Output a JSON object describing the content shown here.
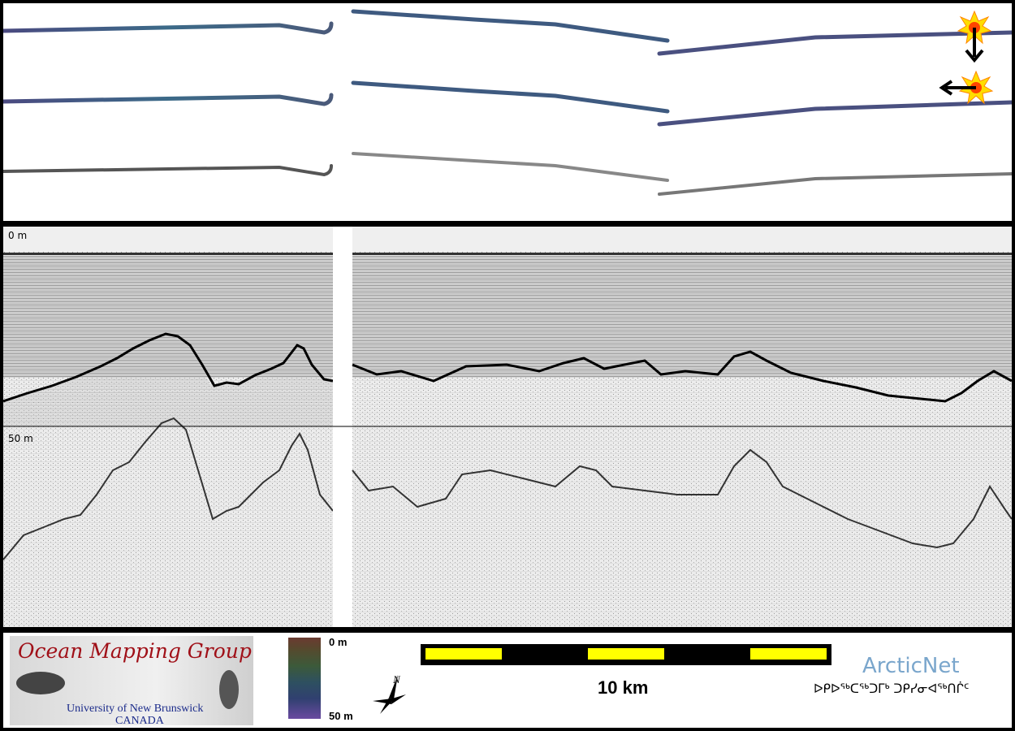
{
  "profile": {
    "depth_top_label": "0 m",
    "depth_mid_label": "50 m"
  },
  "legend": {
    "logo": {
      "title": "Ocean Mapping Group",
      "subtitle_line1": "University of New Brunswick",
      "subtitle_line2": "CANADA"
    },
    "colorbar": {
      "top_label": "0 m",
      "bottom_label": "50 m"
    },
    "scale_label": "10 km",
    "north_label": "N",
    "partner": {
      "name": "ArcticNet",
      "syllabics": "ᐅᑭᐅᖅᑕᖅᑐᒥᒃ ᑐᑭᓯᓂᐊᖅᑎᒌᑦ"
    }
  },
  "colors": {
    "frame": "#000000",
    "scale_yellow": "#ffff00",
    "logo_red": "#a01018",
    "logo_blue": "#1a2a8a",
    "arcticnet_blue": "#7aa6cc",
    "marker_orange": "#ff9a00"
  },
  "icons": [
    "sun-marker-icon",
    "arrow-down-icon",
    "arrow-left-icon",
    "north-arrow-icon"
  ]
}
